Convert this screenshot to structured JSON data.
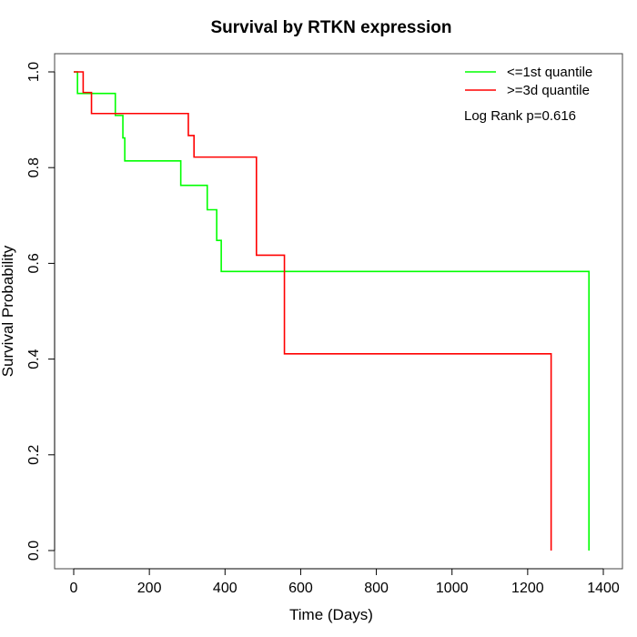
{
  "chart_data": {
    "type": "line",
    "subtype": "kaplan-meier",
    "title": "Survival by RTKN expression",
    "xlabel": "Time (Days)",
    "ylabel": "Survival Probability",
    "xlim": [
      0,
      1400
    ],
    "ylim": [
      0,
      1.0
    ],
    "x_ticks": [
      0,
      200,
      400,
      600,
      800,
      1000,
      1200,
      1400
    ],
    "x_tick_labels": [
      "0",
      "200",
      "400",
      "600",
      "800",
      "1000",
      "1200",
      "1400"
    ],
    "y_ticks": [
      0.0,
      0.2,
      0.4,
      0.6,
      0.8,
      1.0
    ],
    "y_tick_labels": [
      "0.0",
      "0.2",
      "0.4",
      "0.6",
      "0.8",
      "1.0"
    ],
    "grid": false,
    "legend_position": "top-right",
    "annotation": "Log Rank p=0.616",
    "series": [
      {
        "name": "<=1st quantile",
        "color": "#00ff00",
        "times": [
          0,
          10,
          110,
          130,
          135,
          283,
          353,
          378,
          390,
          1362
        ],
        "survival": [
          1.0,
          0.955,
          0.909,
          0.862,
          0.814,
          0.763,
          0.712,
          0.648,
          0.583,
          0.0
        ]
      },
      {
        "name": ">=3d quantile",
        "color": "#ff0000",
        "times": [
          0,
          25,
          47,
          303,
          318,
          483,
          557,
          1262
        ],
        "survival": [
          1.0,
          0.957,
          0.913,
          0.867,
          0.822,
          0.617,
          0.411,
          0.0
        ]
      }
    ]
  }
}
